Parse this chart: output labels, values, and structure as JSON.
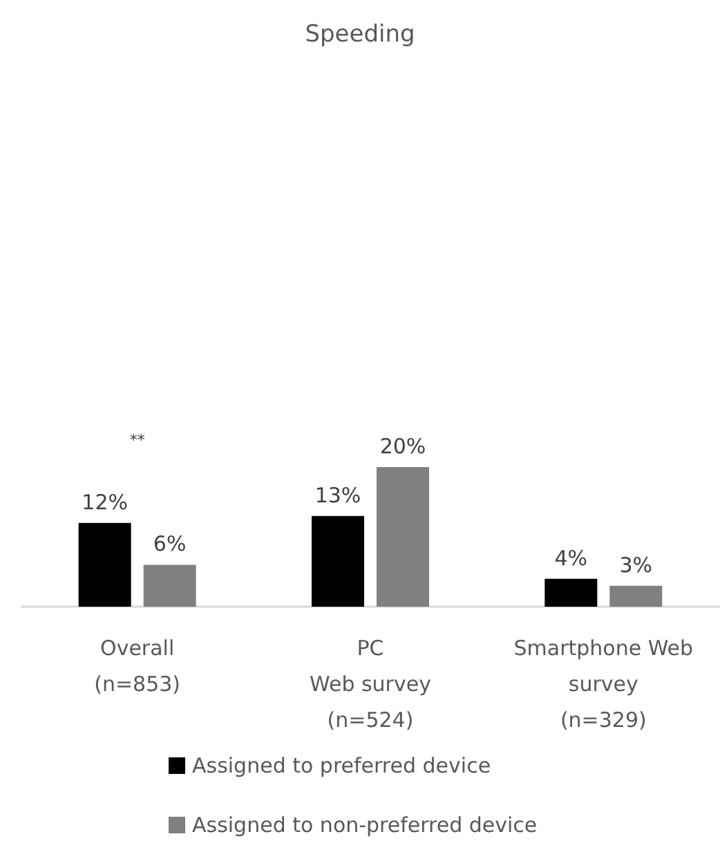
{
  "chart_data": {
    "type": "bar",
    "title": "Speeding",
    "categories": [
      "Overall\n(n=853)",
      "PC\nWeb survey\n(n=524)",
      "Smartphone Web\nsurvey\n(n=329)"
    ],
    "series": [
      {
        "name": "Assigned to preferred device",
        "color": "#000000",
        "values": [
          12,
          13,
          4
        ],
        "value_labels": [
          "12%",
          "13%",
          "4%"
        ]
      },
      {
        "name": "Assigned to non-preferred device",
        "color": "#808080",
        "values": [
          6,
          20,
          3
        ],
        "value_labels": [
          "6%",
          "20%",
          "3%"
        ]
      }
    ],
    "annotations": [
      "**"
    ],
    "legend": "bottom"
  }
}
